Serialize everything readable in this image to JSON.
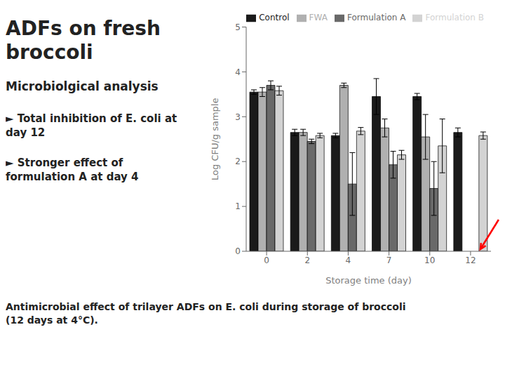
{
  "chart_data": {
    "type": "bar",
    "title": "ADFs on fresh broccoli",
    "subtitle": "Microbiolgical analysis",
    "annotations": [
      {
        "text": "► Total inhibition of E. coli at day 12"
      },
      {
        "text": "► Stronger effect of formulation A at day 4"
      },
      {
        "text": "Antimicrobial effect of trilayer ADFs on E. coli during storage of broccoli (12 days at 4°C)."
      },
      {
        "type": "arrow",
        "category": "12",
        "series": "Formulation A",
        "color": "red"
      }
    ],
    "xlabel": "Storage time (day)",
    "ylabel": "Log CFU/g sample",
    "categories": [
      "0",
      "2",
      "4",
      "7",
      "10",
      "12"
    ],
    "series": [
      {
        "name": "Control",
        "color": "#1a1a1a",
        "values": [
          3.55,
          2.65,
          2.58,
          3.45,
          3.45,
          2.65
        ],
        "errors": [
          0.05,
          0.07,
          0.05,
          0.4,
          0.07,
          0.1
        ]
      },
      {
        "name": "FWA",
        "color": "#b0b0b0",
        "values": [
          3.55,
          2.65,
          3.7,
          2.75,
          2.55,
          0.0
        ],
        "errors": [
          0.1,
          0.07,
          0.05,
          0.2,
          0.5,
          0.0
        ]
      },
      {
        "name": "Formulation A",
        "color": "#696969",
        "values": [
          3.7,
          2.45,
          1.5,
          1.93,
          1.4,
          0.0
        ],
        "errors": [
          0.1,
          0.05,
          0.7,
          0.3,
          0.6,
          0.0
        ]
      },
      {
        "name": "Formulation B",
        "color": "#d3d3d3",
        "values": [
          3.58,
          2.58,
          2.68,
          2.15,
          2.35,
          2.58
        ],
        "errors": [
          0.1,
          0.05,
          0.08,
          0.1,
          0.6,
          0.08
        ]
      }
    ],
    "ylim": [
      0,
      5
    ],
    "yticks": [
      0,
      1,
      2,
      3,
      4,
      5
    ],
    "legend": "upper right",
    "grid": false
  }
}
